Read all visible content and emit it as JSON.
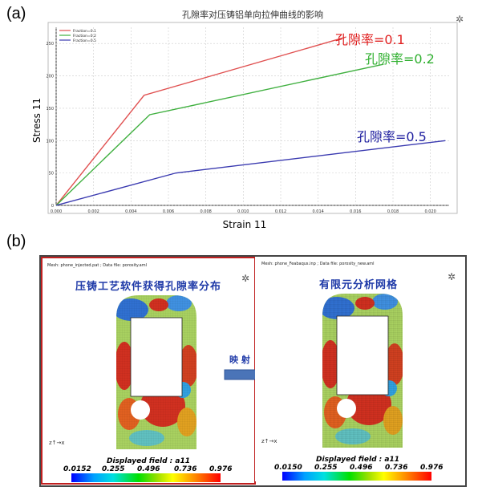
{
  "labels": {
    "a": "(a)",
    "b": "(b)"
  },
  "chart_data": {
    "type": "line",
    "title": "孔隙率对压铸铝单向拉伸曲线的影响",
    "xlabel": "Strain 11",
    "ylabel": "Stress 11",
    "xlim": [
      0,
      0.021
    ],
    "ylim": [
      0,
      275
    ],
    "xticks": [
      "0.000",
      "0.002",
      "0.004",
      "0.006",
      "0.008",
      "0.010",
      "0.012",
      "0.014",
      "0.016",
      "0.018",
      "0.020"
    ],
    "yticks": [
      "0",
      "50",
      "100",
      "150",
      "200",
      "250"
    ],
    "grid": true,
    "legend_position": "top-left",
    "series": [
      {
        "name": "Fraction=0.1",
        "color": "#e05050",
        "x": [
          0,
          0.0047,
          0.0155
        ],
        "y": [
          0,
          170,
          260
        ]
      },
      {
        "name": "Fraction=0.2",
        "color": "#40b040",
        "x": [
          0,
          0.005,
          0.0175
        ],
        "y": [
          0,
          140,
          218
        ]
      },
      {
        "name": "Fraction=0.5",
        "color": "#3a3ab0",
        "x": [
          0,
          0.0064,
          0.0208
        ],
        "y": [
          0,
          50,
          100
        ]
      }
    ],
    "annotations": [
      {
        "text": "孔隙率=0.1",
        "color": "#e02020"
      },
      {
        "text": "孔隙率=0.2",
        "color": "#30b030"
      },
      {
        "text": "孔隙率=0.5",
        "color": "#2020a0"
      }
    ]
  },
  "panel_b": {
    "left": {
      "meta": "Mesh: phone_injected.pat ; Data file: porosity.aml",
      "title": "压铸工艺软件获得孔隙率分布",
      "cbar_title": "Displayed field : a11",
      "ticks": [
        "0.0152",
        "0.255",
        "0.496",
        "0.736",
        "0.976"
      ]
    },
    "right": {
      "meta": "Mesh: phone_Feabaqus.inp ; Data file: porosity_new.aml",
      "title": "有限元分析网格",
      "cbar_title": "Displayed field : a11",
      "ticks": [
        "0.0150",
        "0.255",
        "0.496",
        "0.736",
        "0.976"
      ]
    },
    "arrow_label": "映 射",
    "colors": {
      "left_border": "#c02020",
      "outer_border": "#444444",
      "arrow": "#4a74b8"
    }
  }
}
